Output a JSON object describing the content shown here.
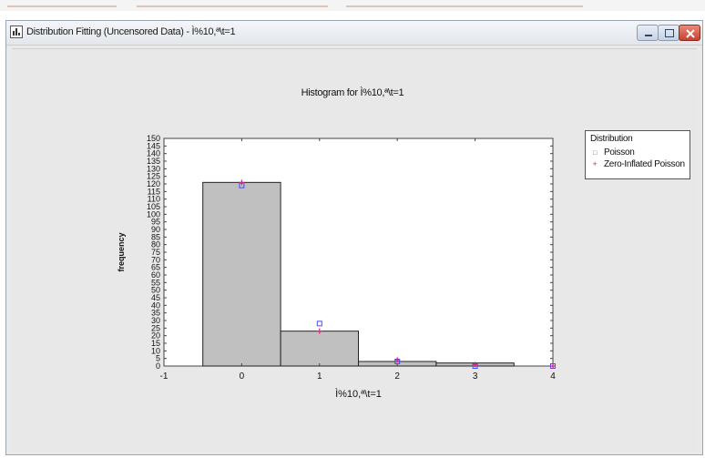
{
  "window": {
    "title": "Distribution Fitting (Uncensored Data) - Ì%10,ª\\t=1",
    "icon": "statgraphics-document-icon",
    "buttons": {
      "minimize": "minimize-icon",
      "maximize": "maximize-icon",
      "close": "close-icon"
    }
  },
  "chart_data": {
    "type": "bar",
    "title": "Histogram for Ì%10,ª\\t=1",
    "xlabel": "Ì%10,ª\\t=1",
    "ylabel": "frequency",
    "x_ticks": [
      -1,
      0,
      1,
      2,
      3,
      4
    ],
    "y_ticks": [
      0,
      5,
      10,
      15,
      20,
      25,
      30,
      35,
      40,
      45,
      50,
      55,
      60,
      65,
      70,
      75,
      80,
      85,
      90,
      95,
      100,
      105,
      110,
      115,
      120,
      125,
      130,
      135,
      140,
      145,
      150
    ],
    "xlim": [
      -1,
      4
    ],
    "ylim": [
      0,
      150
    ],
    "categories": [
      0,
      1,
      2,
      3
    ],
    "values": [
      121,
      23,
      3,
      2
    ],
    "bar_color": "#c0c0c0",
    "series": [
      {
        "name": "Poisson",
        "marker": "square",
        "color": "#4a4aff",
        "x": [
          0,
          1,
          2,
          3,
          4
        ],
        "values": [
          119,
          28,
          3,
          0,
          0
        ]
      },
      {
        "name": "Zero-Inflated Poisson",
        "marker": "plus",
        "color": "#e0208a",
        "x": [
          0,
          1,
          2,
          3,
          4
        ],
        "values": [
          121,
          23,
          4,
          1,
          0
        ]
      }
    ],
    "legend": {
      "title": "Distribution",
      "placement": "right"
    },
    "grid": false
  }
}
